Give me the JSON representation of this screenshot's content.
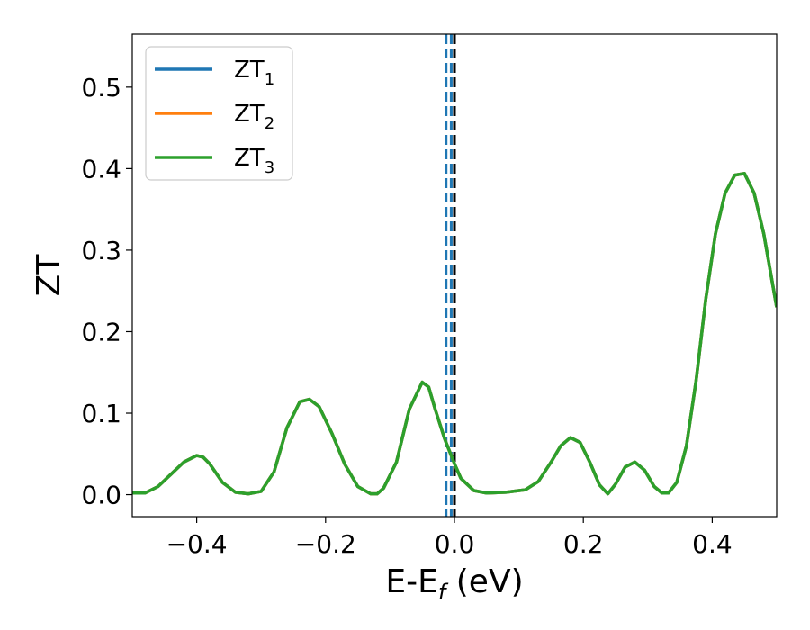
{
  "chart_data": {
    "type": "line",
    "xlabel": "E-E",
    "xlabel_subscript": "f",
    "xlabel_unit": " (eV)",
    "ylabel": "ZT",
    "xlim": [
      -0.5,
      0.5
    ],
    "ylim": [
      -0.027,
      0.565
    ],
    "x_ticks": [
      -0.4,
      -0.2,
      0.0,
      0.2,
      0.4
    ],
    "x_tick_labels": [
      "−0.4",
      "−0.2",
      "0.0",
      "0.2",
      "0.4"
    ],
    "y_ticks": [
      0.0,
      0.1,
      0.2,
      0.3,
      0.4,
      0.5
    ],
    "y_tick_labels": [
      "0.0",
      "0.1",
      "0.2",
      "0.3",
      "0.4",
      "0.5"
    ],
    "grid": false,
    "legend_position": "top-left",
    "x": [
      -0.5,
      -0.48,
      -0.46,
      -0.44,
      -0.42,
      -0.4,
      -0.39,
      -0.38,
      -0.36,
      -0.34,
      -0.32,
      -0.3,
      -0.28,
      -0.26,
      -0.24,
      -0.225,
      -0.21,
      -0.19,
      -0.17,
      -0.15,
      -0.13,
      -0.12,
      -0.11,
      -0.09,
      -0.07,
      -0.05,
      -0.04,
      -0.03,
      -0.015,
      0.0,
      0.01,
      0.03,
      0.05,
      0.08,
      0.11,
      0.13,
      0.15,
      0.165,
      0.18,
      0.195,
      0.21,
      0.225,
      0.238,
      0.25,
      0.265,
      0.28,
      0.295,
      0.31,
      0.322,
      0.332,
      0.345,
      0.36,
      0.375,
      0.39,
      0.405,
      0.42,
      0.435,
      0.45,
      0.465,
      0.48,
      0.5
    ],
    "series": [
      {
        "name": "ZT",
        "name_subscript": "1",
        "color": "#1f77b4",
        "values": [
          0.002,
          0.002,
          0.01,
          0.025,
          0.04,
          0.048,
          0.046,
          0.038,
          0.015,
          0.003,
          0.001,
          0.004,
          0.028,
          0.082,
          0.114,
          0.117,
          0.108,
          0.075,
          0.037,
          0.01,
          0.001,
          0.001,
          0.008,
          0.04,
          0.105,
          0.138,
          0.132,
          0.105,
          0.068,
          0.038,
          0.02,
          0.005,
          0.002,
          0.003,
          0.006,
          0.016,
          0.04,
          0.06,
          0.07,
          0.064,
          0.04,
          0.012,
          0.001,
          0.013,
          0.034,
          0.04,
          0.03,
          0.01,
          0.002,
          0.002,
          0.015,
          0.06,
          0.14,
          0.24,
          0.32,
          0.37,
          0.392,
          0.394,
          0.37,
          0.32,
          0.23
        ]
      },
      {
        "name": "ZT",
        "name_subscript": "2",
        "color": "#ff7f0e",
        "values": [
          0.002,
          0.002,
          0.01,
          0.025,
          0.04,
          0.048,
          0.046,
          0.038,
          0.015,
          0.003,
          0.001,
          0.004,
          0.028,
          0.082,
          0.114,
          0.117,
          0.108,
          0.075,
          0.037,
          0.01,
          0.001,
          0.001,
          0.008,
          0.04,
          0.105,
          0.138,
          0.132,
          0.105,
          0.068,
          0.038,
          0.02,
          0.005,
          0.002,
          0.003,
          0.006,
          0.016,
          0.04,
          0.06,
          0.07,
          0.064,
          0.04,
          0.012,
          0.001,
          0.013,
          0.034,
          0.04,
          0.03,
          0.01,
          0.002,
          0.002,
          0.015,
          0.06,
          0.14,
          0.24,
          0.32,
          0.37,
          0.392,
          0.394,
          0.37,
          0.32,
          0.23
        ]
      },
      {
        "name": "ZT",
        "name_subscript": "3",
        "color": "#2ca02c",
        "values": [
          0.002,
          0.002,
          0.01,
          0.025,
          0.04,
          0.048,
          0.046,
          0.038,
          0.015,
          0.003,
          0.001,
          0.004,
          0.028,
          0.082,
          0.114,
          0.117,
          0.108,
          0.075,
          0.037,
          0.01,
          0.001,
          0.001,
          0.008,
          0.04,
          0.105,
          0.138,
          0.132,
          0.105,
          0.068,
          0.038,
          0.02,
          0.005,
          0.002,
          0.003,
          0.006,
          0.016,
          0.04,
          0.06,
          0.07,
          0.064,
          0.04,
          0.012,
          0.001,
          0.013,
          0.034,
          0.04,
          0.03,
          0.01,
          0.002,
          0.002,
          0.015,
          0.06,
          0.14,
          0.24,
          0.32,
          0.37,
          0.392,
          0.394,
          0.37,
          0.32,
          0.23
        ]
      }
    ],
    "vertical_lines": [
      {
        "x": -0.013,
        "color": "#1f77b4",
        "style": "dashed"
      },
      {
        "x": -0.005,
        "color": "#1f77b4",
        "style": "dashed"
      },
      {
        "x": 0.0,
        "color": "#000000",
        "style": "dashed"
      }
    ]
  }
}
